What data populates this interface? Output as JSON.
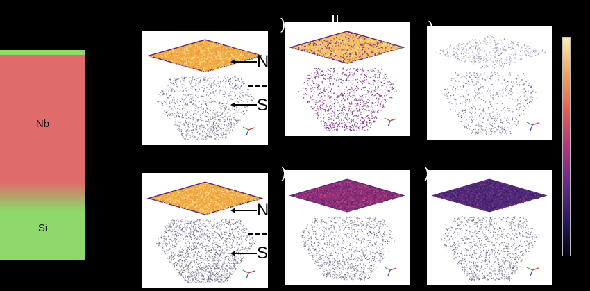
{
  "layer_stack": {
    "layers": [
      {
        "label": "Nb",
        "color": "#e06b6b"
      },
      {
        "label": "Si",
        "color": "#8fd86b"
      }
    ],
    "top_strip_color": "#8fd86b"
  },
  "panels": [
    {
      "row": 1,
      "col": 1,
      "top_style": "orange",
      "cloud_density": "medium",
      "arrows": [
        "N",
        "S"
      ]
    },
    {
      "row": 1,
      "col": 2,
      "top_style": "orange-purple",
      "cloud_density": "purple"
    },
    {
      "row": 1,
      "col": 3,
      "top_style": "sparse",
      "cloud_density": "sparse"
    },
    {
      "row": 2,
      "col": 1,
      "top_style": "orange",
      "cloud_density": "dense",
      "arrows": [
        "N",
        "S"
      ]
    },
    {
      "row": 2,
      "col": 2,
      "top_style": "magenta",
      "cloud_density": "medium"
    },
    {
      "row": 2,
      "col": 3,
      "top_style": "purple",
      "cloud_density": "medium"
    }
  ],
  "arrow_labels": {
    "top": "N",
    "bottom": "S"
  },
  "label_fragments": [
    ")",
    ")",
    ")",
    ")",
    ")"
  ],
  "colorbar": {
    "colors": [
      "#f9efb0",
      "#f0a45e",
      "#e0605a",
      "#b0377a",
      "#6a2a84",
      "#2a1a5e",
      "#050314"
    ]
  }
}
